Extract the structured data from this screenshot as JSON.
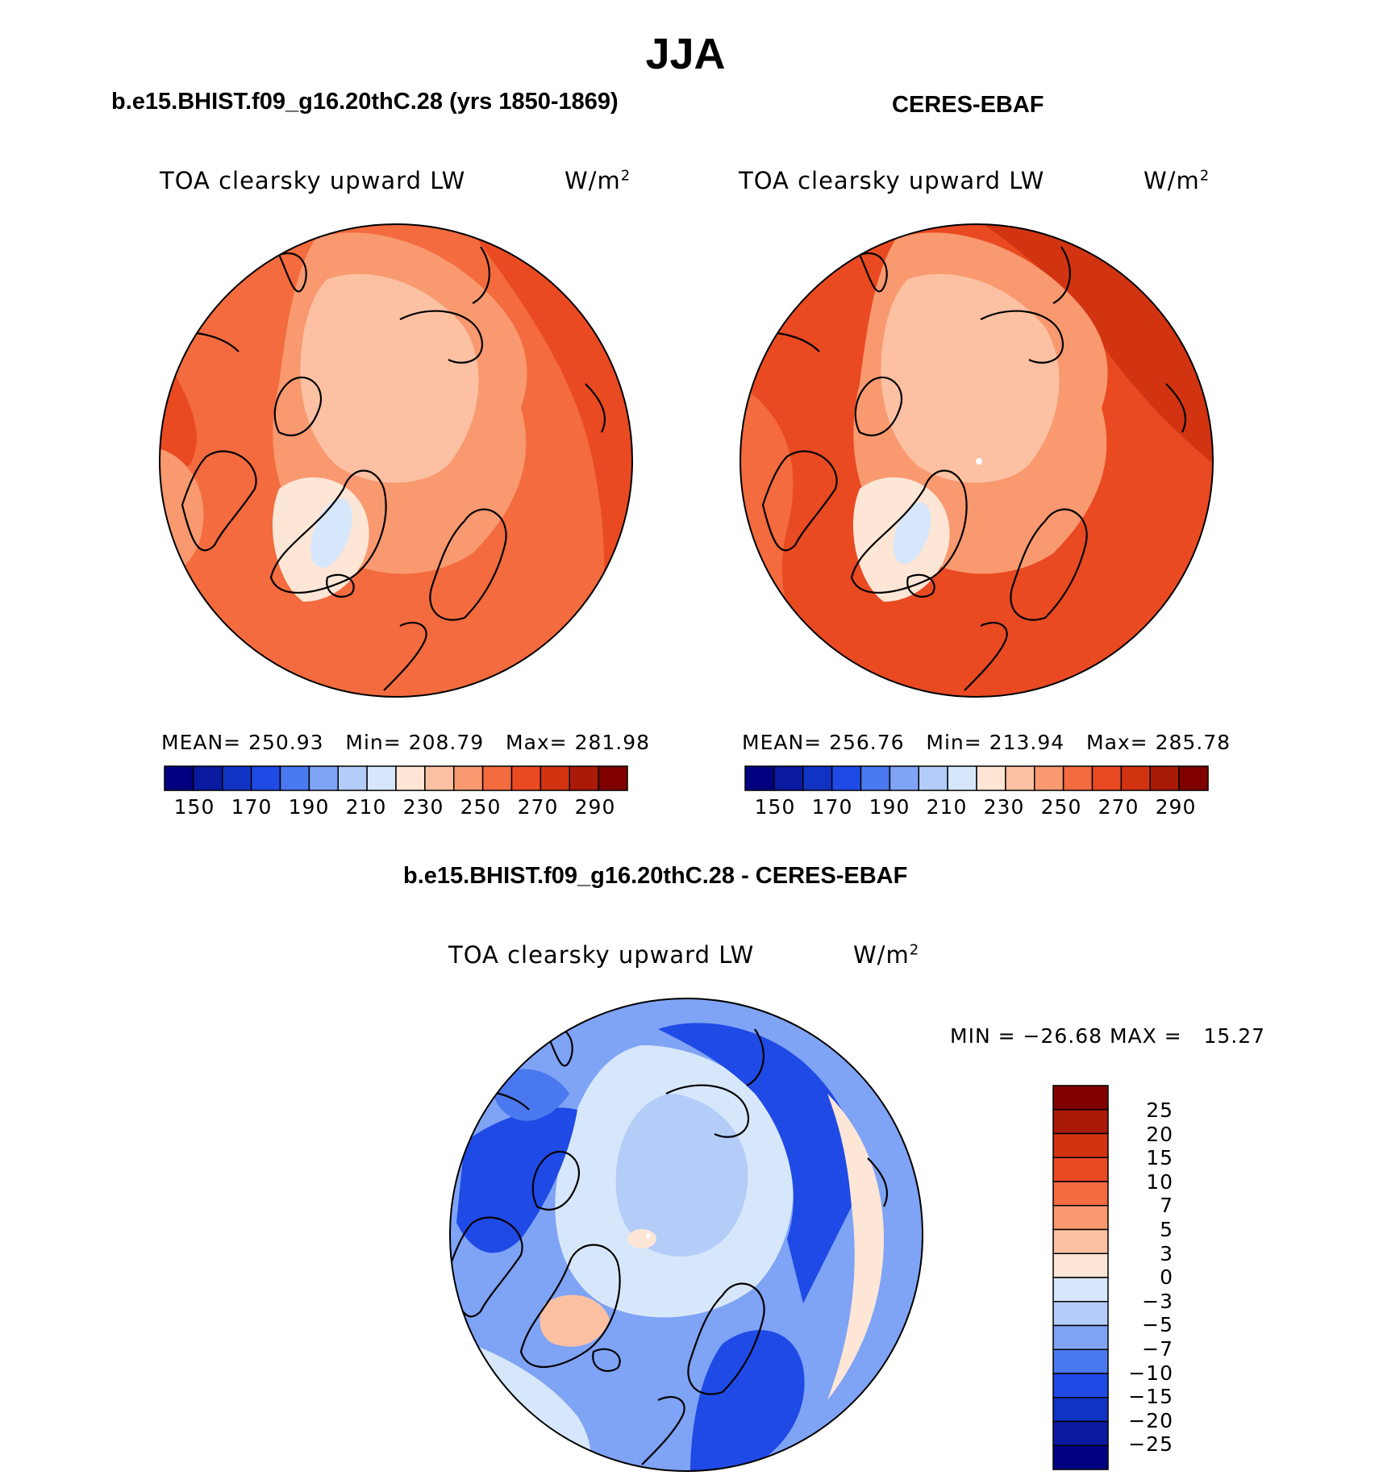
{
  "title": "JJA",
  "panels": [
    {
      "heading": "b.e15.BHIST.f09_g16.20thC.28 (yrs 1850-1869)",
      "variable": "TOA clearsky upward LW",
      "units_base": "W/m",
      "units_exp": "2",
      "stats": {
        "mean_label": "MEAN=",
        "mean": "250.93",
        "min_label": "Min=",
        "min": "208.79",
        "max_label": "Max=",
        "max": "281.98"
      }
    },
    {
      "heading": "CERES-EBAF",
      "variable": "TOA clearsky upward LW",
      "units_base": "W/m",
      "units_exp": "2",
      "stats": {
        "mean_label": "MEAN=",
        "mean": "256.76",
        "min_label": "Min=",
        "min": "213.94",
        "max_label": "Max=",
        "max": "285.78"
      }
    }
  ],
  "diff_panel": {
    "heading": "b.e15.BHIST.f09_g16.20thC.28 - CERES-EBAF",
    "variable": "TOA clearsky upward LW",
    "units_base": "W/m",
    "units_exp": "2",
    "minmax_text": "MIN = −26.68 MAX =   15.27"
  },
  "colorbar_abs": {
    "labels": [
      "150",
      "170",
      "190",
      "210",
      "230",
      "250",
      "270",
      "290"
    ],
    "colors": [
      "#000080",
      "#0a1aa0",
      "#1133c4",
      "#1f4ae6",
      "#4a78ee",
      "#7fa3f5",
      "#b3ccf8",
      "#d7e7fb",
      "#fde6d6",
      "#fcc1a3",
      "#f9996f",
      "#f36b3e",
      "#e94a22",
      "#d23412",
      "#aa1a08",
      "#800000"
    ]
  },
  "colorbar_diff": {
    "labels": [
      "25",
      "20",
      "15",
      "10",
      "7",
      "5",
      "3",
      "0",
      "−3",
      "−5",
      "−7",
      "−10",
      "−15",
      "−20",
      "−25"
    ],
    "colors_top_to_bottom": [
      "#800000",
      "#aa1a08",
      "#d23412",
      "#e94a22",
      "#f36b3e",
      "#f9996f",
      "#fcc1a3",
      "#fde6d6",
      "#d7e7fb",
      "#b3ccf8",
      "#7fa3f5",
      "#4a78ee",
      "#1f4ae6",
      "#1133c4",
      "#0a1aa0",
      "#000080"
    ]
  }
}
